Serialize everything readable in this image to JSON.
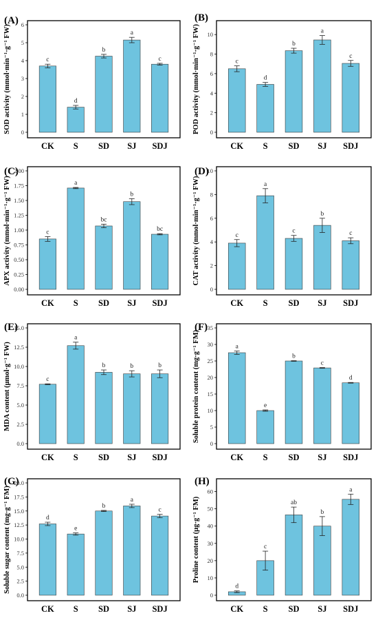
{
  "figure": {
    "bar_color": "#6EC3DF",
    "bar_stroke": "#3a3a3a"
  },
  "chart_data": [
    {
      "panel": "(A)",
      "type": "bar",
      "categories": [
        "CK",
        "S",
        "SD",
        "SJ",
        "SDJ"
      ],
      "values": [
        3.7,
        1.4,
        4.25,
        5.15,
        3.8
      ],
      "errors": [
        0.1,
        0.1,
        0.1,
        0.15,
        0.05
      ],
      "letters": [
        "c",
        "d",
        "b",
        "a",
        "c"
      ],
      "ylabel": "SOD activity  (mmol·min⁻¹·g⁻¹ FW)",
      "ylim": [
        0,
        6
      ],
      "yticks": [
        "0",
        "1",
        "2",
        "3",
        "4",
        "5",
        "6"
      ]
    },
    {
      "panel": "(B)",
      "type": "bar",
      "categories": [
        "CK",
        "S",
        "SD",
        "SJ",
        "SDJ"
      ],
      "values": [
        6.5,
        4.9,
        8.35,
        9.45,
        7.05
      ],
      "errors": [
        0.3,
        0.2,
        0.25,
        0.45,
        0.3
      ],
      "letters": [
        "c",
        "d",
        "b",
        "a",
        "c"
      ],
      "ylabel": "POD activity  (mmol·min⁻¹·g⁻¹ FW)",
      "ylim": [
        0,
        11
      ],
      "yticks": [
        "0",
        "2",
        "4",
        "6",
        "8",
        "10"
      ]
    },
    {
      "panel": "(C)",
      "type": "bar",
      "categories": [
        "CK",
        "S",
        "SD",
        "SJ",
        "SDJ"
      ],
      "values": [
        0.85,
        1.71,
        1.07,
        1.48,
        0.93
      ],
      "errors": [
        0.04,
        0.01,
        0.03,
        0.05,
        0.01
      ],
      "letters": [
        "c",
        "a",
        "bc",
        "b",
        "bc"
      ],
      "ylabel": "APX activity  (mmol·min⁻¹·g⁻¹ FW)",
      "ylim": [
        0,
        2.0
      ],
      "yticks": [
        "0.00",
        "0.25",
        "0.50",
        "0.75",
        "1.00",
        "1.25",
        "1.50",
        "1.75",
        "2.00"
      ]
    },
    {
      "panel": "(D)",
      "type": "bar",
      "categories": [
        "CK",
        "S",
        "SD",
        "SJ",
        "SDJ"
      ],
      "values": [
        3.9,
        7.9,
        4.3,
        5.4,
        4.1
      ],
      "errors": [
        0.3,
        0.6,
        0.25,
        0.6,
        0.25
      ],
      "letters": [
        "c",
        "a",
        "c",
        "b",
        "c"
      ],
      "ylabel": "CAT activity  (mmol·min⁻¹·g⁻¹ FW)",
      "ylim": [
        0,
        10
      ],
      "yticks": [
        "0",
        "2",
        "4",
        "6",
        "8",
        "10"
      ]
    },
    {
      "panel": "(E)",
      "type": "bar",
      "categories": [
        "CK",
        "S",
        "SD",
        "SJ",
        "SDJ"
      ],
      "values": [
        7.7,
        12.7,
        9.25,
        9.05,
        9.05
      ],
      "errors": [
        0.05,
        0.45,
        0.3,
        0.4,
        0.5
      ],
      "letters": [
        "c",
        "a",
        "b",
        "b",
        "b"
      ],
      "ylabel": "MDA content  (μmol·g⁻¹ FW)",
      "ylim": [
        0,
        15
      ],
      "yticks": [
        "0.0",
        "2.5",
        "5.0",
        "7.5",
        "10.0",
        "12.5",
        "15.0"
      ]
    },
    {
      "panel": "(F)",
      "type": "bar",
      "categories": [
        "CK",
        "S",
        "SD",
        "SJ",
        "SDJ"
      ],
      "values": [
        27.5,
        10.0,
        25.0,
        22.9,
        18.4
      ],
      "errors": [
        0.5,
        0.2,
        0.1,
        0.1,
        0.1
      ],
      "letters": [
        "a",
        "e",
        "b",
        "c",
        "d"
      ],
      "ylabel": "Soluble protein content (mg·g⁻¹ FM)",
      "ylim": [
        0,
        35
      ],
      "yticks": [
        "0",
        "5",
        "10",
        "15",
        "20",
        "25",
        "30",
        "35"
      ]
    },
    {
      "panel": "(G)",
      "type": "bar",
      "categories": [
        "CK",
        "S",
        "SD",
        "SJ",
        "SDJ"
      ],
      "values": [
        12.7,
        10.9,
        15.0,
        15.9,
        14.1
      ],
      "errors": [
        0.3,
        0.2,
        0.1,
        0.3,
        0.3
      ],
      "letters": [
        "d",
        "e",
        "b",
        "a",
        "c"
      ],
      "ylabel": "Soluble sugar content (mg·g⁻¹ FM)",
      "ylim": [
        0,
        20
      ],
      "yticks": [
        "0.0",
        "2.5",
        "5.0",
        "7.5",
        "10.0",
        "12.5",
        "15.0",
        "17.5",
        "20.0"
      ]
    },
    {
      "panel": "(H)",
      "type": "bar",
      "categories": [
        "CK",
        "S",
        "SD",
        "SJ",
        "SDJ"
      ],
      "values": [
        2.0,
        20.0,
        46.5,
        40.0,
        55.5
      ],
      "errors": [
        0.5,
        5.5,
        4.5,
        5.5,
        3.0
      ],
      "letters": [
        "d",
        "c",
        "ab",
        "b",
        "a"
      ],
      "ylabel": "Proline content (μg·g⁻¹ FM)",
      "ylim": [
        0,
        65
      ],
      "yticks": [
        "0",
        "10",
        "20",
        "30",
        "40",
        "50",
        "60"
      ]
    }
  ]
}
